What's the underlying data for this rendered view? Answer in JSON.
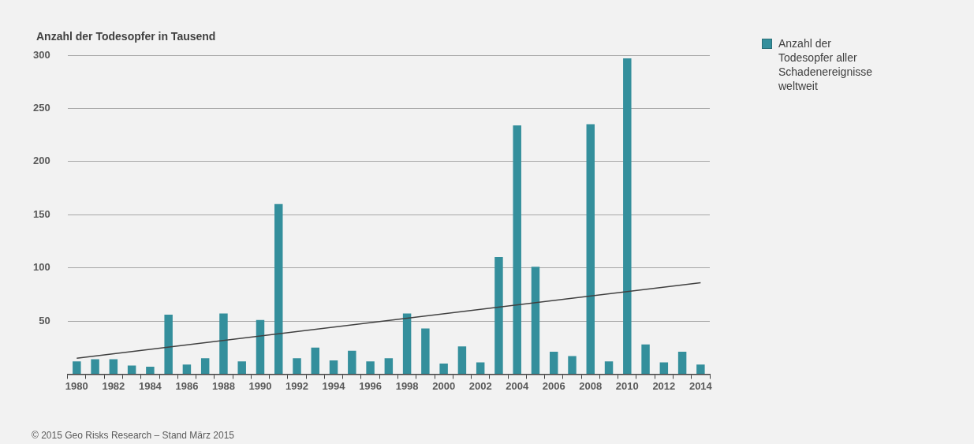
{
  "chart_data": {
    "type": "bar",
    "ylabel": "Anzahl der Todesopfer in Tausend",
    "categories": [
      "1980",
      null,
      "1982",
      null,
      "1984",
      null,
      "1986",
      null,
      "1988",
      null,
      "1990",
      null,
      "1992",
      null,
      "1994",
      null,
      "1996",
      null,
      "1998",
      null,
      "2000",
      null,
      "2002",
      null,
      "2004",
      null,
      "2006",
      null,
      "2008",
      null,
      "2010",
      null,
      "2012",
      null,
      "2014"
    ],
    "series": [
      {
        "name": "Anzahl der Todesopfer aller Schadenereignisse weltweit",
        "color": "#348f9c",
        "values": [
          12,
          14,
          14,
          8,
          7,
          56,
          9,
          15,
          57,
          12,
          51,
          160,
          15,
          25,
          13,
          22,
          12,
          15,
          57,
          43,
          10,
          26,
          11,
          110,
          234,
          101,
          21,
          17,
          235,
          12,
          297,
          28,
          11,
          21,
          9
        ]
      },
      {
        "type": "line",
        "color": "#404040",
        "values": [
          15,
          null,
          null,
          null,
          null,
          null,
          null,
          null,
          null,
          null,
          null,
          null,
          null,
          null,
          null,
          null,
          null,
          null,
          null,
          null,
          null,
          null,
          null,
          null,
          null,
          null,
          null,
          null,
          null,
          null,
          null,
          null,
          null,
          null,
          86
        ]
      }
    ],
    "ylim": [
      0,
      300
    ],
    "yticks": [
      {
        "value": 0,
        "label": null
      },
      50,
      100,
      150,
      200,
      250,
      300
    ],
    "grid": "y",
    "legend": "right",
    "marker": "none",
    "annotations": [
      "© 2015 Geo Risks Research – Stand März 2015"
    ]
  }
}
